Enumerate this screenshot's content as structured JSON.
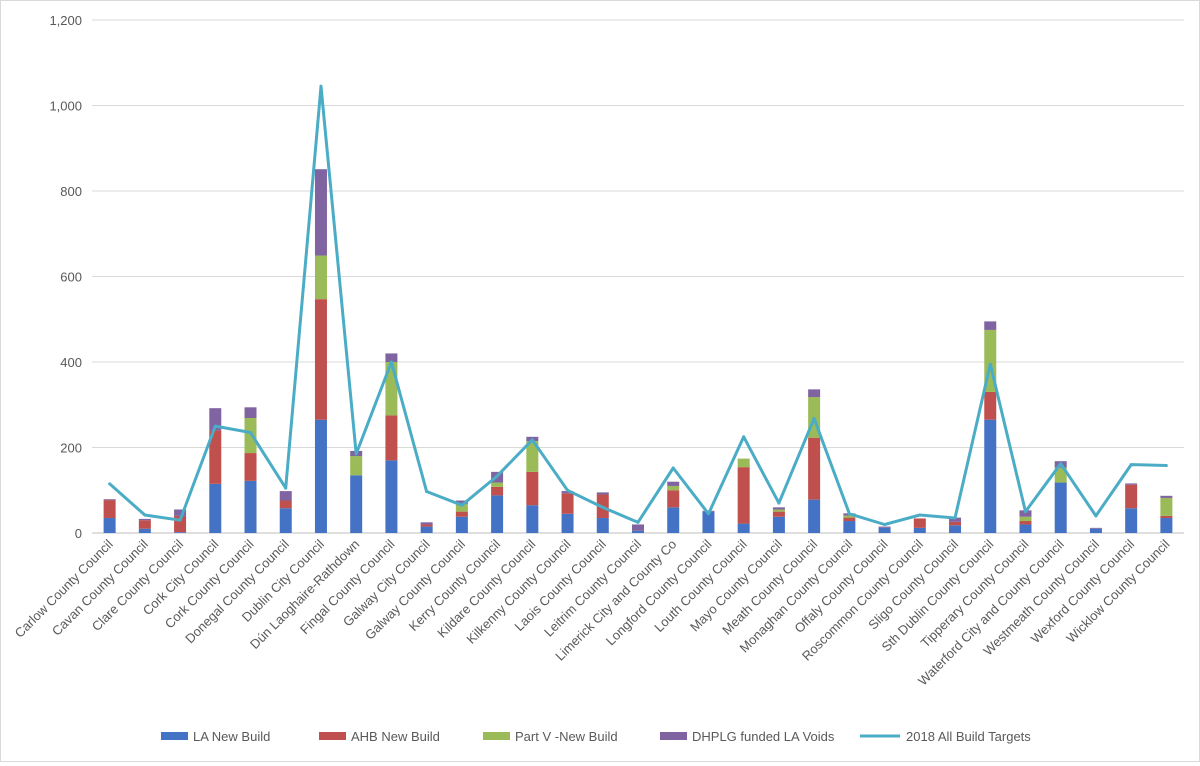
{
  "chart_data": {
    "type": "bar",
    "stacked": true,
    "categories": [
      "Carlow County Council",
      "Cavan County Council",
      "Clare County Council",
      "Cork City Council",
      "Cork County Council",
      "Donegal County Council",
      "Dublin City Council",
      "Dún Laoghaire-Rathdown",
      "Fingal County Council",
      "Galway City Council",
      "Galway County Council",
      "Kerry County Council",
      "Kildare County Council",
      "Kilkenny County Council",
      "Laois County Council",
      "Leitrim County Council",
      "Limerick City and County Co",
      "Longford County Council",
      "Louth County Council",
      "Mayo County Council",
      "Meath County Council",
      "Monaghan County Council",
      "Offaly County Council",
      "Roscommon County Council",
      "Sligo County Council",
      "Sth Dublin County Council",
      "Tipperary County Council",
      "Waterford City and County Council",
      "Westmeath County Council",
      "Wexford County Council",
      "Wicklow County Council"
    ],
    "series": [
      {
        "name": "LA New Build",
        "color": "#4472c4",
        "values": [
          35,
          10,
          2,
          115,
          122,
          58,
          265,
          135,
          170,
          15,
          38,
          88,
          65,
          45,
          35,
          5,
          60,
          50,
          22,
          38,
          78,
          28,
          12,
          12,
          18,
          265,
          20,
          118,
          10,
          58,
          35
        ]
      },
      {
        "name": "AHB New Build",
        "color": "#c0504d",
        "values": [
          42,
          20,
          38,
          125,
          65,
          18,
          282,
          0,
          105,
          5,
          12,
          20,
          78,
          48,
          55,
          0,
          40,
          0,
          132,
          12,
          145,
          8,
          0,
          22,
          8,
          65,
          8,
          0,
          0,
          55,
          5
        ]
      },
      {
        "name": "Part V -New Build",
        "color": "#9bbb59",
        "values": [
          0,
          0,
          0,
          0,
          82,
          0,
          102,
          45,
          125,
          0,
          18,
          10,
          72,
          0,
          0,
          0,
          10,
          0,
          20,
          5,
          95,
          5,
          0,
          0,
          0,
          145,
          10,
          35,
          0,
          0,
          42
        ]
      },
      {
        "name": "DHPLG funded LA Voids",
        "color": "#8064a2",
        "values": [
          2,
          3,
          15,
          52,
          25,
          22,
          202,
          12,
          20,
          5,
          8,
          25,
          10,
          5,
          5,
          15,
          10,
          2,
          0,
          5,
          18,
          5,
          3,
          0,
          10,
          20,
          15,
          15,
          2,
          3,
          5
        ]
      }
    ],
    "line_series": {
      "name": "2018 All Build Targets",
      "color": "#4bacc6",
      "values": [
        115,
        42,
        30,
        250,
        235,
        105,
        1045,
        185,
        400,
        97,
        65,
        133,
        218,
        100,
        60,
        25,
        152,
        45,
        225,
        70,
        268,
        45,
        20,
        42,
        35,
        395,
        50,
        162,
        40,
        160,
        158
      ]
    },
    "ylim": [
      0,
      1200
    ],
    "yticks": [
      "0",
      "200",
      "400",
      "600",
      "800",
      "1,000",
      "1,200"
    ],
    "ytick_values": [
      0,
      200,
      400,
      600,
      800,
      1000,
      1200
    ],
    "legend_position": "bottom",
    "grid": true
  }
}
